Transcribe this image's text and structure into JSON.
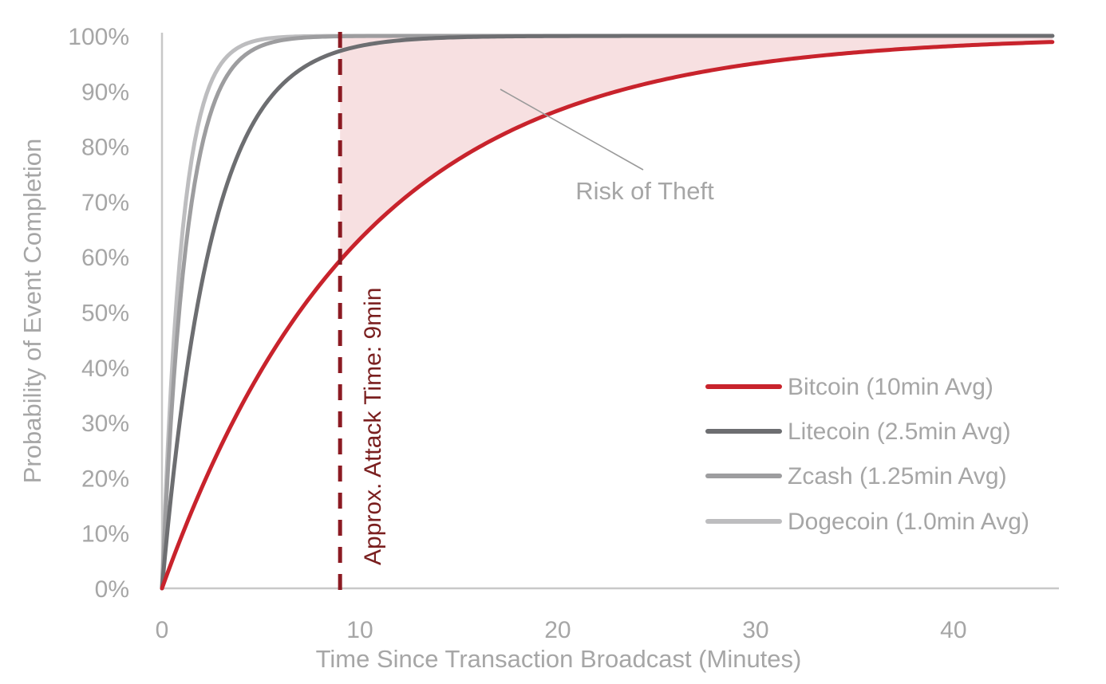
{
  "chart_data": {
    "type": "line",
    "xlabel": "Time Since Transaction Broadcast (Minutes)",
    "ylabel": "Probability of Event Completion",
    "xlim": [
      0,
      45
    ],
    "ylim": [
      0,
      1
    ],
    "x_ticks": [
      0,
      10,
      20,
      30,
      40
    ],
    "x_tick_labels": [
      "0",
      "10",
      "20",
      "30",
      "40"
    ],
    "y_ticks": [
      0,
      0.1,
      0.2,
      0.3,
      0.4,
      0.5,
      0.6,
      0.7,
      0.8,
      0.9,
      1.0
    ],
    "y_tick_labels": [
      "0%",
      "10%",
      "20%",
      "30%",
      "40%",
      "50%",
      "60%",
      "70%",
      "80%",
      "90%",
      "100%"
    ],
    "grid": false,
    "legend_position": "lower-right",
    "series": [
      {
        "name": "Bitcoin (10min Avg)",
        "mean_block_time_min": 10,
        "color": "#c8232c",
        "x": [
          0,
          5,
          9,
          10,
          15,
          20,
          25,
          30,
          35,
          40,
          45
        ],
        "y": [
          0,
          0.393,
          0.593,
          0.632,
          0.777,
          0.865,
          0.918,
          0.95,
          0.97,
          0.982,
          0.989
        ]
      },
      {
        "name": "Litecoin (2.5min Avg)",
        "mean_block_time_min": 2.5,
        "color": "#6d6e71",
        "x": [
          0,
          1,
          2.5,
          5,
          9,
          10,
          15
        ],
        "y": [
          0,
          0.33,
          0.632,
          0.865,
          0.973,
          0.982,
          0.998
        ]
      },
      {
        "name": "Zcash (1.25min Avg)",
        "mean_block_time_min": 1.25,
        "color": "#9d9d9f",
        "x": [
          0,
          1,
          1.25,
          2.5,
          5,
          9
        ],
        "y": [
          0,
          0.551,
          0.632,
          0.865,
          0.982,
          0.999
        ]
      },
      {
        "name": "Dogecoin (1.0min Avg)",
        "mean_block_time_min": 1.0,
        "color": "#bdbdbf",
        "x": [
          0,
          1,
          2.5,
          5,
          9
        ],
        "y": [
          0,
          0.632,
          0.918,
          0.993,
          1.0
        ]
      }
    ],
    "vertical_line": {
      "x": 9,
      "label": "Approx. Attack Time: 9min",
      "color": "#8b1a22"
    },
    "shaded_region": {
      "from_x": 9,
      "to_x": 45,
      "between": "Bitcoin curve and 100%",
      "label": "Risk of Theft",
      "color": "#f7e0e1"
    },
    "annotations": [
      {
        "text": "Risk of Theft"
      }
    ]
  }
}
